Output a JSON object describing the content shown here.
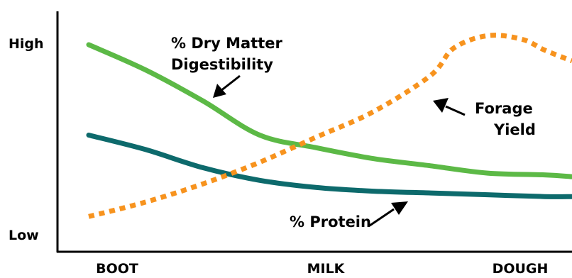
{
  "chart_data": {
    "type": "line",
    "title": "",
    "xlabel": "",
    "ylabel": "",
    "x_ticks": [
      "BOOT",
      "MILK",
      "DOUGH"
    ],
    "y_ticks": [
      "Low",
      "High"
    ],
    "xlim": [
      0,
      2.12
    ],
    "ylim": [
      0,
      1
    ],
    "grid": false,
    "series": [
      {
        "name": "% Dry Matter Digestibility",
        "color": "#5cb946",
        "style": "solid",
        "x": [
          0,
          0.25,
          0.5,
          0.75,
          1.0,
          1.25,
          1.5,
          1.75,
          2.0,
          2.12
        ],
        "y": [
          1.0,
          0.86,
          0.69,
          0.5,
          0.43,
          0.37,
          0.33,
          0.29,
          0.28,
          0.27
        ]
      },
      {
        "name": "% Protein",
        "color": "#0d6a6c",
        "style": "solid",
        "x": [
          0,
          0.25,
          0.5,
          0.75,
          1.0,
          1.25,
          1.5,
          1.75,
          2.0,
          2.12
        ],
        "y": [
          0.5,
          0.42,
          0.32,
          0.25,
          0.21,
          0.19,
          0.18,
          0.17,
          0.16,
          0.16
        ]
      },
      {
        "name": "Forage Yield",
        "color": "#f7931e",
        "style": "dotted",
        "x": [
          0,
          0.25,
          0.5,
          0.75,
          1.0,
          1.25,
          1.5,
          1.6,
          1.75,
          1.9,
          2.0,
          2.12
        ],
        "y": [
          0.05,
          0.13,
          0.23,
          0.35,
          0.49,
          0.63,
          0.83,
          0.98,
          1.05,
          1.03,
          0.97,
          0.91
        ]
      }
    ],
    "annotations": [
      {
        "id": "dmd",
        "lines": [
          "% Dry Matter",
          "Digestibility"
        ]
      },
      {
        "id": "yield",
        "lines": [
          "Forage",
          "Yield"
        ]
      },
      {
        "id": "protein",
        "lines": [
          "% Protein"
        ]
      }
    ]
  }
}
